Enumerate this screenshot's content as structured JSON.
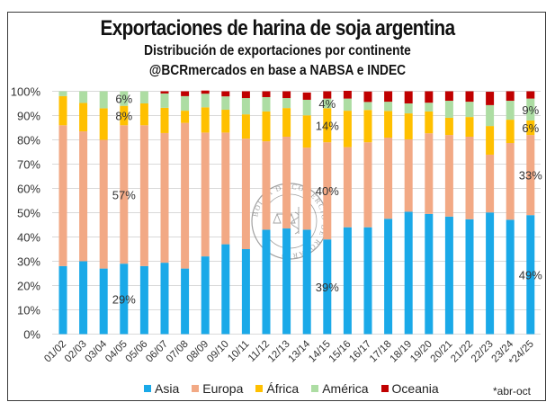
{
  "chart_data": {
    "type": "bar",
    "stacked": true,
    "normalized": true,
    "title": "Exportaciones de harina de soja argentina",
    "subtitle": "Distribución de exportaciones por continente",
    "source": "@BCRmercados en base a NABSA e INDEC",
    "xlabel": "",
    "ylabel": "",
    "ylim": [
      0,
      100
    ],
    "yticks": [
      "0%",
      "10%",
      "20%",
      "30%",
      "40%",
      "50%",
      "60%",
      "70%",
      "80%",
      "90%",
      "100%"
    ],
    "grid": true,
    "legend_position": "bottom",
    "footnote": "*abr-oct",
    "categories": [
      "01/02",
      "02/03",
      "03/04",
      "04/05",
      "05/06",
      "06/07",
      "07/08",
      "08/09",
      "09/10",
      "10/11",
      "11/12",
      "12/13",
      "13/14",
      "14/15",
      "15/16",
      "16/17",
      "17/18",
      "18/19",
      "19/20",
      "20/21",
      "21/22",
      "22/23",
      "23/24",
      "*24/25"
    ],
    "series": [
      {
        "name": "Asia",
        "color": "#1AA9E8",
        "values": [
          28,
          30,
          27,
          29,
          28,
          29.4,
          27,
          32,
          37,
          35,
          43,
          43.5,
          43,
          39,
          44,
          44,
          47.5,
          50.4,
          49.5,
          48.4,
          47.3,
          50.1,
          47.1,
          49
        ]
      },
      {
        "name": "Europa",
        "color": "#F2A985",
        "values": [
          58,
          53.5,
          53,
          57,
          58,
          53.4,
          60,
          51,
          46,
          45.5,
          36.4,
          37.8,
          33.8,
          40,
          33,
          35,
          33.4,
          29.8,
          33.2,
          33.6,
          34,
          23.8,
          31.6,
          33
        ]
      },
      {
        "name": "África",
        "color": "#FFC000",
        "values": [
          12,
          11.7,
          13,
          8,
          9,
          10.4,
          5,
          10.4,
          9.4,
          10,
          12.3,
          11.8,
          13.3,
          14,
          15,
          13.3,
          11,
          10.7,
          9,
          7.1,
          8.1,
          11.8,
          9.6,
          6
        ]
      },
      {
        "name": "América",
        "color": "#ADDDA3",
        "values": [
          2,
          4.8,
          7,
          6,
          5,
          5.9,
          6,
          5.6,
          5.5,
          6.7,
          5.9,
          4.1,
          6.4,
          4,
          5,
          3.3,
          3.8,
          4.1,
          3.6,
          7,
          6.3,
          8.6,
          7.8,
          9
        ]
      },
      {
        "name": "Oceania",
        "color": "#C00000",
        "values": [
          0,
          0,
          0,
          0,
          0,
          0.9,
          2,
          1.3,
          2.1,
          2.8,
          2.4,
          2.8,
          3,
          3,
          3.2,
          4.3,
          4.3,
          5,
          4.7,
          3.9,
          4.3,
          5.5,
          3.9,
          3
        ]
      }
    ],
    "annotations": [
      {
        "category": "04/05",
        "series": "Asia",
        "text": "29%"
      },
      {
        "category": "04/05",
        "series": "Europa",
        "text": "57%"
      },
      {
        "category": "04/05",
        "series": "África",
        "text": "8%"
      },
      {
        "category": "04/05",
        "series": "América",
        "text": "6%"
      },
      {
        "category": "14/15",
        "series": "Asia",
        "text": "39%"
      },
      {
        "category": "14/15",
        "series": "Europa",
        "text": "40%"
      },
      {
        "category": "14/15",
        "series": "África",
        "text": "14%"
      },
      {
        "category": "14/15",
        "series": "América",
        "text": "4%"
      },
      {
        "category": "*24/25",
        "series": "Asia",
        "text": "49%"
      },
      {
        "category": "*24/25",
        "series": "Europa",
        "text": "33%"
      },
      {
        "category": "*24/25",
        "series": "África",
        "text": "6%"
      },
      {
        "category": "*24/25",
        "series": "América",
        "text": "9%"
      }
    ],
    "watermark": "BOLSA DE COMERCIO DE ROSARIO"
  }
}
